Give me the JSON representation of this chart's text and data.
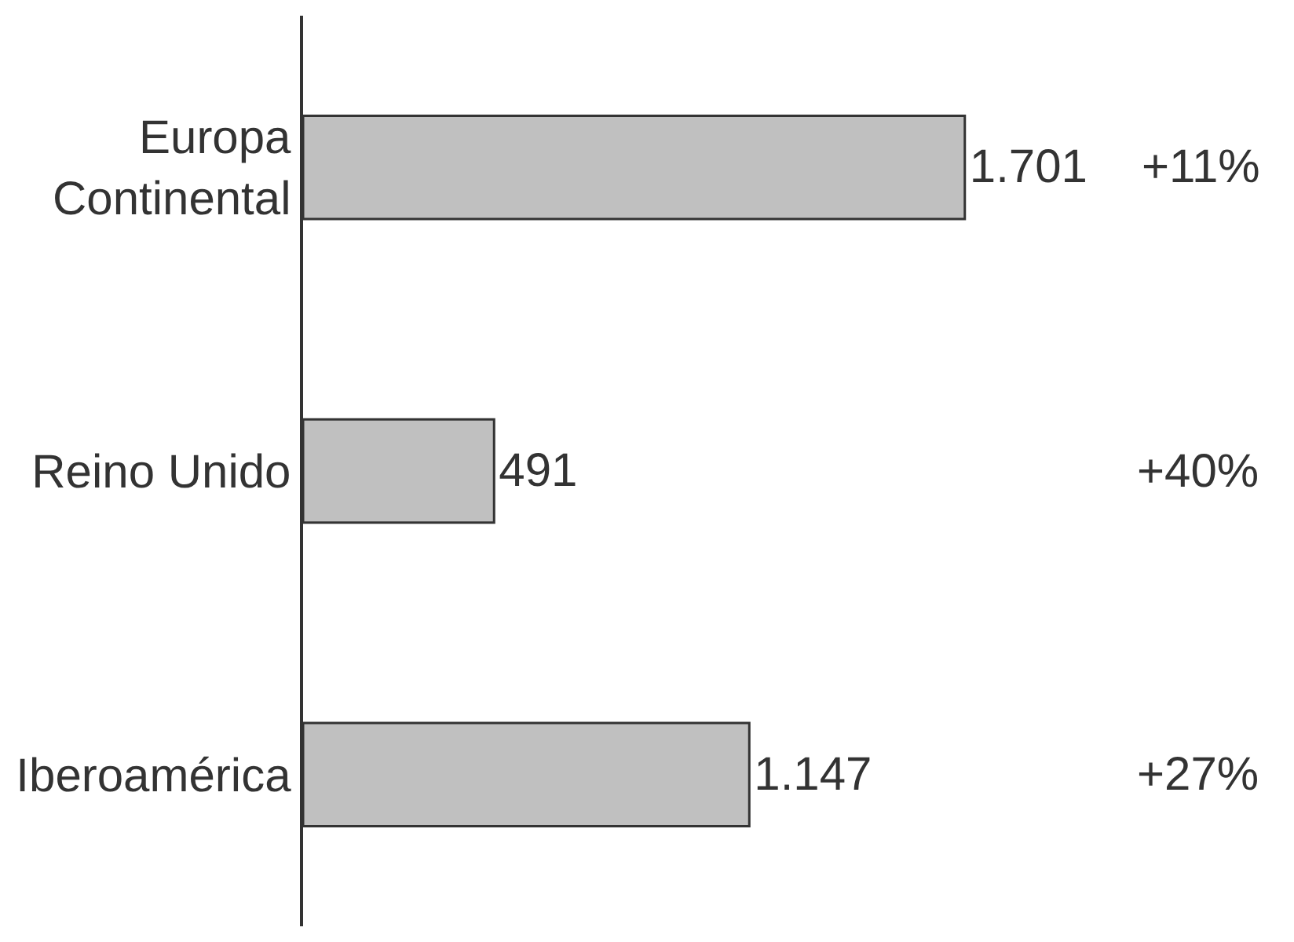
{
  "chart_data": {
    "type": "bar",
    "orientation": "horizontal",
    "categories": [
      "Europa\nContinental",
      "Reino Unido",
      "Iberoamérica"
    ],
    "values": [
      1701,
      491,
      1147
    ],
    "value_labels": [
      "1.701",
      "491",
      "1.147"
    ],
    "color": "#c0c0c0",
    "annotations": [
      "+11%",
      "+40%",
      "+27%"
    ],
    "legend": false
  }
}
